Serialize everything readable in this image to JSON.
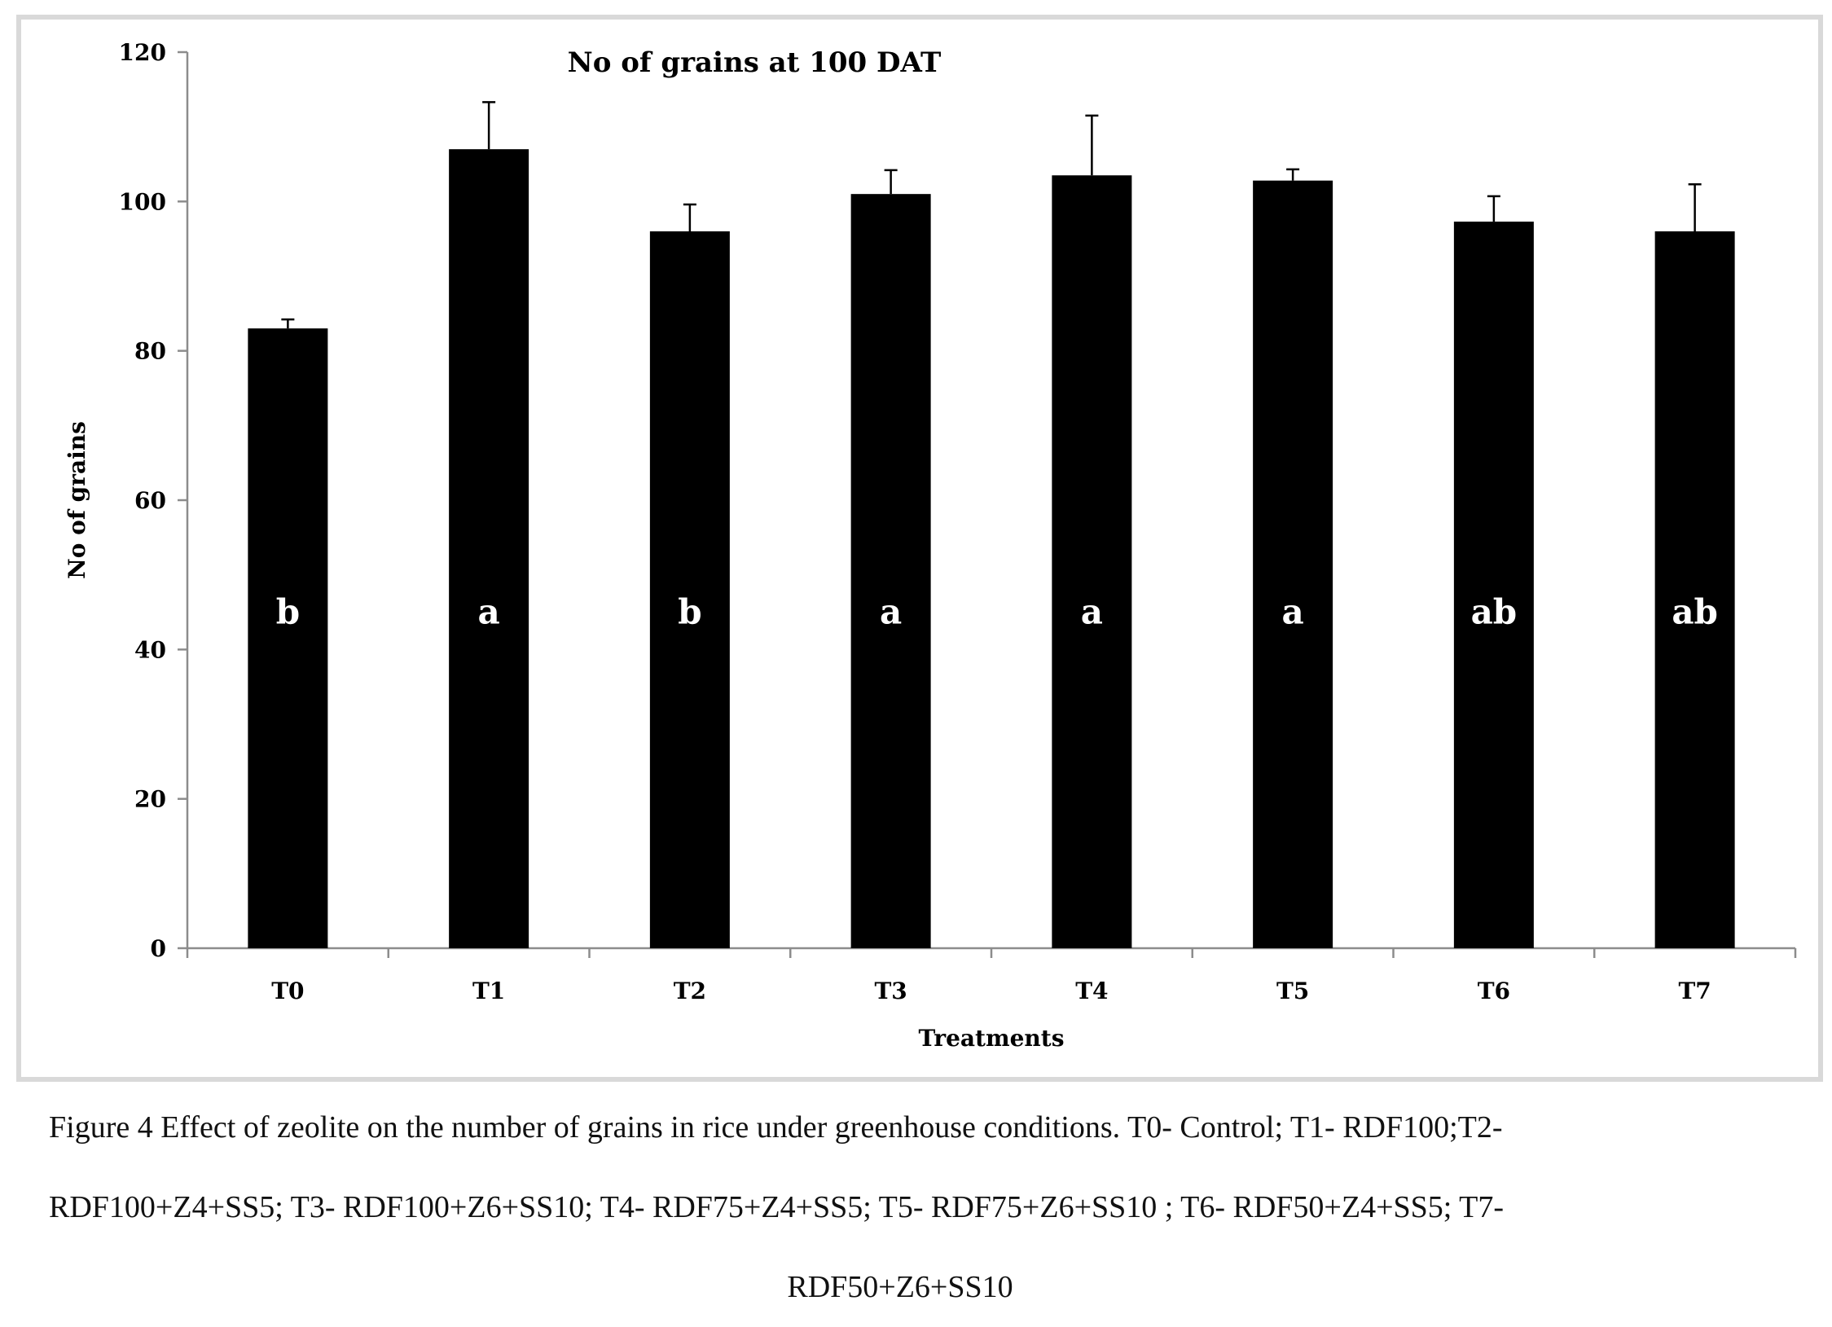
{
  "chart_data": {
    "type": "bar",
    "title": "No of grains at 100 DAT",
    "xlabel": "Treatments",
    "ylabel": "No of grains",
    "ylim": [
      0,
      120
    ],
    "yticks": [
      0,
      20,
      40,
      60,
      80,
      100,
      120
    ],
    "categories": [
      "T0",
      "T1",
      "T2",
      "T3",
      "T4",
      "T5",
      "T6",
      "T7"
    ],
    "values": [
      83,
      107,
      96,
      101,
      103.5,
      102.8,
      97.3,
      96
    ],
    "error": [
      1.2,
      6.3,
      3.6,
      3.2,
      8,
      1.5,
      3.4,
      6.3
    ],
    "letters": [
      "b",
      "a",
      "b",
      "a",
      "a",
      "a",
      "ab",
      "ab"
    ],
    "bar_color": "#000000",
    "letter_color": "#ffffff",
    "grid": false,
    "legend": "none"
  },
  "caption": {
    "line1": "Figure 4 Effect of zeolite on the number of grains in rice under greenhouse conditions. T0- Control; T1- RDF100;T2-",
    "line2": "RDF100+Z4+SS5; T3- RDF100+Z6+SS10; T4- RDF75+Z4+SS5; T5- RDF75+Z6+SS10 ; T6- RDF50+Z4+SS5; T7-",
    "line3": "RDF50+Z6+SS10"
  }
}
